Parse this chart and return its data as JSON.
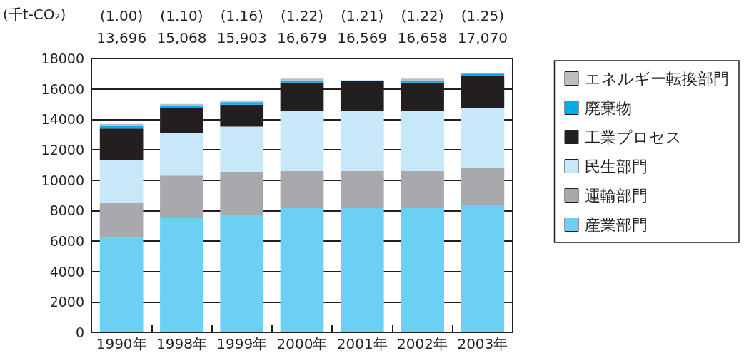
{
  "chart_data": {
    "type": "bar",
    "stacked": true,
    "ylabel": "(千t-CO₂)",
    "categories": [
      "1990年",
      "1998年",
      "1999年",
      "2000年",
      "2001年",
      "2002年",
      "2003年"
    ],
    "series": [
      {
        "name": "産業部門",
        "color": "#6ccff4",
        "values": [
          6200,
          7500,
          7700,
          8160,
          8160,
          8160,
          8370
        ]
      },
      {
        "name": "運輸部門",
        "color": "#a7a9ac",
        "values": [
          2300,
          2800,
          2860,
          2430,
          2430,
          2430,
          2430
        ]
      },
      {
        "name": "民生部門",
        "color": "#c7e8f9",
        "values": [
          2800,
          2780,
          2960,
          3960,
          3960,
          3960,
          3970
        ]
      },
      {
        "name": "工業プロセス",
        "color": "#231f20",
        "values": [
          2100,
          1660,
          1450,
          1870,
          1950,
          1870,
          2070
        ]
      },
      {
        "name": "廃棄物",
        "color": "#00aeef",
        "values": [
          150,
          160,
          160,
          140,
          60,
          140,
          160
        ]
      },
      {
        "name": "エネルギー転換部門",
        "color": "#bcbec0",
        "values": [
          150,
          110,
          120,
          120,
          null,
          120,
          null
        ]
      }
    ],
    "annotations": [
      "(1.00)",
      "(1.10)",
      "(1.16)",
      "(1.22)",
      "(1.21)",
      "(1.22)",
      "(1.25)",
      "13,696",
      "15,068",
      "15,903",
      "16,679",
      "16,569",
      "16,658",
      "17,070"
    ],
    "ylim": [
      0,
      18000
    ],
    "yticks": [
      0,
      2000,
      4000,
      6000,
      8000,
      10000,
      12000,
      14000,
      16000,
      18000
    ],
    "grid": "y",
    "legend": "right"
  }
}
